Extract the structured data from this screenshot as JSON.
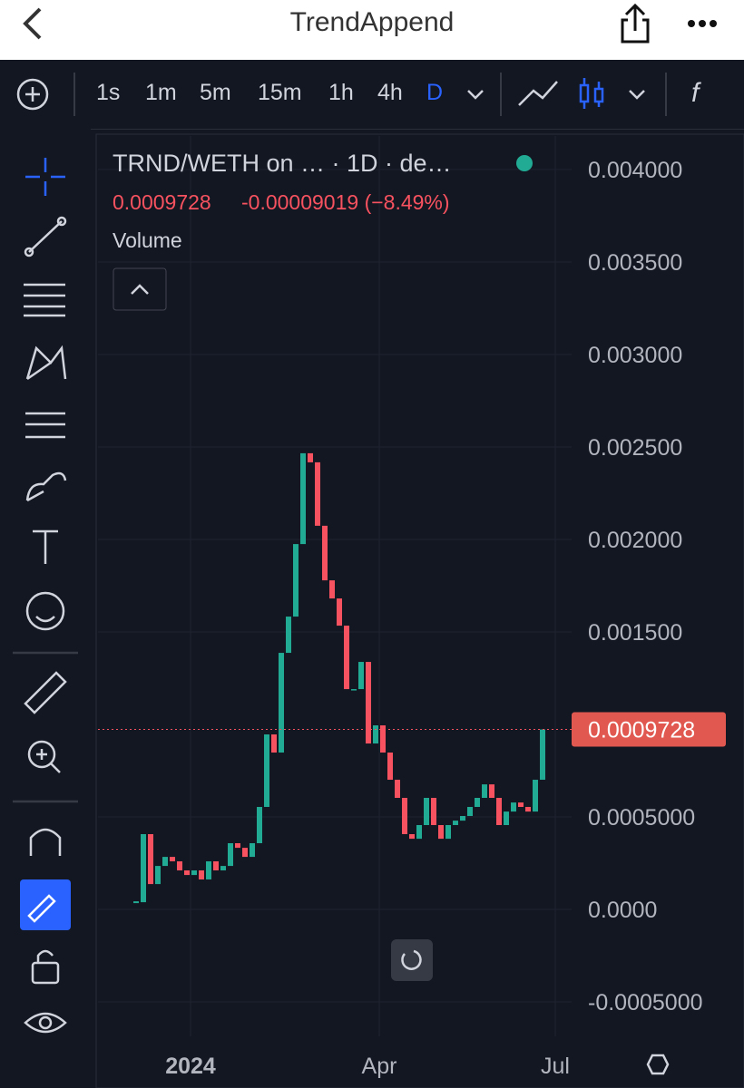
{
  "nav": {
    "title": "TrendAppend"
  },
  "toolbar": {
    "intervals": [
      "1s",
      "1m",
      "5m",
      "15m",
      "1h",
      "4h",
      "D"
    ],
    "active": 6
  },
  "chart_data": {
    "type": "candlestick",
    "title": "TRND/WETH on …  · 1D · de…",
    "change_label": "-0.00009019 (−8.49%)",
    "study": "Volume",
    "values": [
      3.9e-05,
      0.000407,
      0.000137,
      0.000235,
      0.000284,
      0.00026,
      0.000211,
      0.000186,
      0.000211,
      0.000162,
      0.00026,
      0.000211,
      0.000235,
      0.000358,
      0.000333,
      0.000284,
      0.000358,
      0.000554,
      0.000946,
      0.000848,
      0.001387,
      0.001583,
      0.001975,
      0.002466,
      0.002417,
      0.002074,
      0.001779,
      0.001681,
      0.001534,
      0.001191,
      0.001191,
      0.001338,
      0.000897,
      0.000995,
      0.000848,
      0.000701,
      0.000603,
      0.000407,
      0.000382,
      0.000456,
      0.000603,
      0.000456,
      0.000382,
      0.000456,
      0.00048,
      0.000505,
      0.000554,
      0.000603,
      0.000676,
      0.000603,
      0.000456,
      0.000529,
      0.000578,
      0.000554,
      0.000529,
      0.000701,
      0.0009728
    ],
    "up_color": "#22ab94",
    "down_color": "#f7525f",
    "ylim": [
      -0.000686,
      0.004181
    ],
    "yticks": [
      {
        "value": 0.004,
        "label": "0.004000"
      },
      {
        "value": 0.0035,
        "label": "0.003500"
      },
      {
        "value": 0.003,
        "label": "0.003000"
      },
      {
        "value": 0.0025,
        "label": "0.002500"
      },
      {
        "value": 0.002,
        "label": "0.002000"
      },
      {
        "value": 0.0015,
        "label": "0.001500"
      },
      {
        "value": 0.0005,
        "label": "0.0005000"
      },
      {
        "value": 0,
        "label": "0.0000"
      },
      {
        "value": -0.0005,
        "label": "-0.0005000"
      }
    ],
    "xtick_labels": [
      "2024",
      "Apr",
      "Jul"
    ],
    "grid": true
  }
}
